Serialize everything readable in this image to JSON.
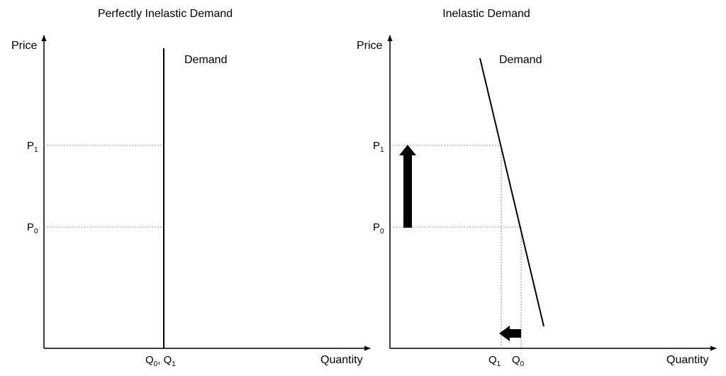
{
  "colors": {
    "background": "#ffffff",
    "ink": "#000000",
    "guide": "#888888"
  },
  "panels": {
    "left": {
      "title": "Perfectly Inelastic Demand",
      "y_axis_label": "Price",
      "x_axis_label": "Quantity",
      "curve_label": "Demand",
      "p1": {
        "main": "P",
        "sub": "1"
      },
      "p0": {
        "main": "P",
        "sub": "0"
      },
      "q_label": {
        "q0_main": "Q",
        "q0_sub": "0",
        "sep": ", ",
        "q1_main": "Q",
        "q1_sub": "1"
      }
    },
    "right": {
      "title": "Inelastic Demand",
      "y_axis_label": "Price",
      "x_axis_label": "Quantity",
      "curve_label": "Demand",
      "p1": {
        "main": "P",
        "sub": "1"
      },
      "p0": {
        "main": "P",
        "sub": "0"
      },
      "q1": {
        "main": "Q",
        "sub": "1"
      },
      "q0": {
        "main": "Q",
        "sub": "0"
      },
      "arrows": {
        "price": "up",
        "quantity": "left"
      }
    }
  }
}
